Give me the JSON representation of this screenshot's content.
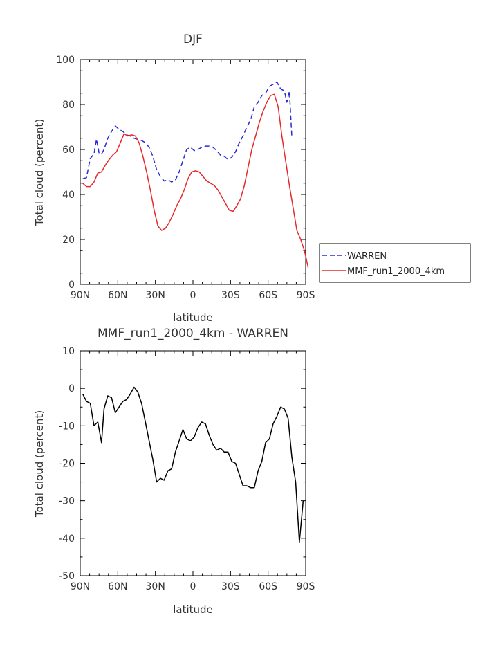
{
  "chart_data": [
    {
      "type": "line",
      "title": "DJF",
      "xlabel": "latitude",
      "ylabel": "Total cloud (percent)",
      "xlim": [
        90,
        -90
      ],
      "ylim": [
        0,
        100
      ],
      "xtick_values": [
        90,
        60,
        30,
        0,
        -30,
        -60,
        -90
      ],
      "xtick_labels": [
        "90N",
        "60N",
        "30N",
        "0",
        "30S",
        "60S",
        "90S"
      ],
      "ytick_values": [
        0,
        20,
        40,
        60,
        80,
        100
      ],
      "ytick_labels": [
        "0",
        "20",
        "40",
        "60",
        "80",
        "100"
      ],
      "grid": false,
      "legend_position": "right",
      "series": [
        {
          "name": "WARREN",
          "color": "#2a2ad6",
          "dash": "dashed",
          "points": [
            [
              88,
              47
            ],
            [
              85,
              47.5
            ],
            [
              82,
              56
            ],
            [
              79,
              58
            ],
            [
              77,
              64.5
            ],
            [
              75,
              58.5
            ],
            [
              73,
              58
            ],
            [
              71,
              60
            ],
            [
              68,
              65
            ],
            [
              65,
              68
            ],
            [
              62,
              70.5
            ],
            [
              59,
              69
            ],
            [
              56,
              68
            ],
            [
              53,
              66.5
            ],
            [
              50,
              66
            ],
            [
              47,
              65
            ],
            [
              44,
              64.5
            ],
            [
              41,
              64
            ],
            [
              38,
              63
            ],
            [
              35,
              61
            ],
            [
              32,
              57
            ],
            [
              29,
              51
            ],
            [
              26,
              48
            ],
            [
              23,
              46
            ],
            [
              20,
              46.5
            ],
            [
              17,
              45.5
            ],
            [
              14,
              46.5
            ],
            [
              11,
              50
            ],
            [
              8,
              55
            ],
            [
              5,
              60
            ],
            [
              2,
              61
            ],
            [
              -1,
              59.5
            ],
            [
              -4,
              60
            ],
            [
              -7,
              61
            ],
            [
              -10,
              61.5
            ],
            [
              -13,
              61.5
            ],
            [
              -16,
              61
            ],
            [
              -19,
              59.5
            ],
            [
              -22,
              57.5
            ],
            [
              -25,
              57
            ],
            [
              -28,
              55.5
            ],
            [
              -31,
              56.5
            ],
            [
              -34,
              59
            ],
            [
              -37,
              63
            ],
            [
              -40,
              66
            ],
            [
              -43,
              70
            ],
            [
              -46,
              73
            ],
            [
              -49,
              79
            ],
            [
              -52,
              81
            ],
            [
              -55,
              84
            ],
            [
              -58,
              85
            ],
            [
              -61,
              88
            ],
            [
              -64,
              89
            ],
            [
              -67,
              90
            ],
            [
              -70,
              87
            ],
            [
              -73,
              86
            ],
            [
              -75,
              81
            ],
            [
              -77,
              86
            ],
            [
              -79,
              65
            ]
          ]
        },
        {
          "name": "MMF_run1_2000_4km",
          "color": "#e8282b",
          "dash": "solid",
          "points": [
            [
              88,
              45
            ],
            [
              85,
              43.5
            ],
            [
              82,
              43.5
            ],
            [
              79,
              45.5
            ],
            [
              76,
              49.5
            ],
            [
              73,
              50
            ],
            [
              70,
              53
            ],
            [
              67,
              55.5
            ],
            [
              64,
              57.5
            ],
            [
              61,
              59
            ],
            [
              58,
              63
            ],
            [
              55,
              67
            ],
            [
              52,
              66
            ],
            [
              49,
              66.5
            ],
            [
              46,
              66
            ],
            [
              43,
              63
            ],
            [
              40,
              57
            ],
            [
              37,
              50
            ],
            [
              34,
              42
            ],
            [
              31,
              33
            ],
            [
              28,
              26
            ],
            [
              25,
              24
            ],
            [
              22,
              25
            ],
            [
              19,
              27.5
            ],
            [
              16,
              31
            ],
            [
              13,
              35
            ],
            [
              10,
              38
            ],
            [
              7,
              42
            ],
            [
              4,
              47
            ],
            [
              1,
              50
            ],
            [
              -2,
              50.5
            ],
            [
              -5,
              50
            ],
            [
              -8,
              48
            ],
            [
              -11,
              46
            ],
            [
              -14,
              45
            ],
            [
              -17,
              44
            ],
            [
              -20,
              42
            ],
            [
              -23,
              39
            ],
            [
              -26,
              36
            ],
            [
              -29,
              33
            ],
            [
              -32,
              32.5
            ],
            [
              -35,
              35
            ],
            [
              -38,
              38
            ],
            [
              -41,
              44
            ],
            [
              -44,
              52
            ],
            [
              -47,
              60
            ],
            [
              -50,
              66
            ],
            [
              -53,
              72
            ],
            [
              -56,
              77
            ],
            [
              -59,
              81
            ],
            [
              -62,
              84
            ],
            [
              -65,
              84.5
            ],
            [
              -68,
              79
            ],
            [
              -71,
              66
            ],
            [
              -74,
              55
            ],
            [
              -77,
              44
            ],
            [
              -80,
              34
            ],
            [
              -83,
              24
            ],
            [
              -86,
              20
            ],
            [
              -89,
              15
            ],
            [
              -92,
              7.5
            ]
          ]
        }
      ]
    },
    {
      "type": "line",
      "title": "MMF_run1_2000_4km - WARREN",
      "xlabel": "latitude",
      "ylabel": "Total cloud (percent)",
      "xlim": [
        90,
        -90
      ],
      "ylim": [
        -50,
        10
      ],
      "xtick_values": [
        90,
        60,
        30,
        0,
        -30,
        -60,
        -90
      ],
      "xtick_labels": [
        "90N",
        "60N",
        "30N",
        "0",
        "30S",
        "60S",
        "90S"
      ],
      "ytick_values": [
        -50,
        -40,
        -30,
        -20,
        -10,
        0,
        10
      ],
      "ytick_labels": [
        "-50",
        "-40",
        "-30",
        "-20",
        "-10",
        "0",
        "10"
      ],
      "grid": false,
      "series": [
        {
          "color": "#000000",
          "dash": "solid",
          "points": [
            [
              88,
              -1.5
            ],
            [
              85,
              -3.5
            ],
            [
              82,
              -4
            ],
            [
              79,
              -10
            ],
            [
              76,
              -9
            ],
            [
              73,
              -14.5
            ],
            [
              71,
              -5.5
            ],
            [
              68,
              -2
            ],
            [
              65,
              -2.5
            ],
            [
              62,
              -6.5
            ],
            [
              59,
              -5
            ],
            [
              56,
              -3.5
            ],
            [
              53,
              -3
            ],
            [
              50,
              -1.5
            ],
            [
              47,
              0.3
            ],
            [
              44,
              -1
            ],
            [
              41,
              -4
            ],
            [
              38,
              -9
            ],
            [
              35,
              -14
            ],
            [
              32,
              -19
            ],
            [
              29,
              -25
            ],
            [
              26,
              -24
            ],
            [
              23,
              -24.5
            ],
            [
              20,
              -22
            ],
            [
              17,
              -21.5
            ],
            [
              14,
              -17
            ],
            [
              11,
              -14
            ],
            [
              8,
              -11
            ],
            [
              5,
              -13.5
            ],
            [
              2,
              -14
            ],
            [
              -1,
              -13
            ],
            [
              -4,
              -10.5
            ],
            [
              -7,
              -9
            ],
            [
              -10,
              -9.5
            ],
            [
              -13,
              -12.5
            ],
            [
              -16,
              -15
            ],
            [
              -19,
              -16.5
            ],
            [
              -22,
              -16
            ],
            [
              -25,
              -17
            ],
            [
              -28,
              -17
            ],
            [
              -31,
              -19.5
            ],
            [
              -34,
              -20
            ],
            [
              -37,
              -23
            ],
            [
              -40,
              -26
            ],
            [
              -43,
              -26
            ],
            [
              -46,
              -26.5
            ],
            [
              -49,
              -26.5
            ],
            [
              -52,
              -22
            ],
            [
              -55,
              -19.5
            ],
            [
              -58,
              -14.5
            ],
            [
              -61,
              -13.5
            ],
            [
              -64,
              -9.5
            ],
            [
              -67,
              -7.5
            ],
            [
              -70,
              -5
            ],
            [
              -73,
              -5.5
            ],
            [
              -76,
              -8
            ],
            [
              -79,
              -18.5
            ],
            [
              -82,
              -25
            ],
            [
              -85,
              -41
            ],
            [
              -88,
              -30
            ]
          ]
        }
      ]
    }
  ]
}
